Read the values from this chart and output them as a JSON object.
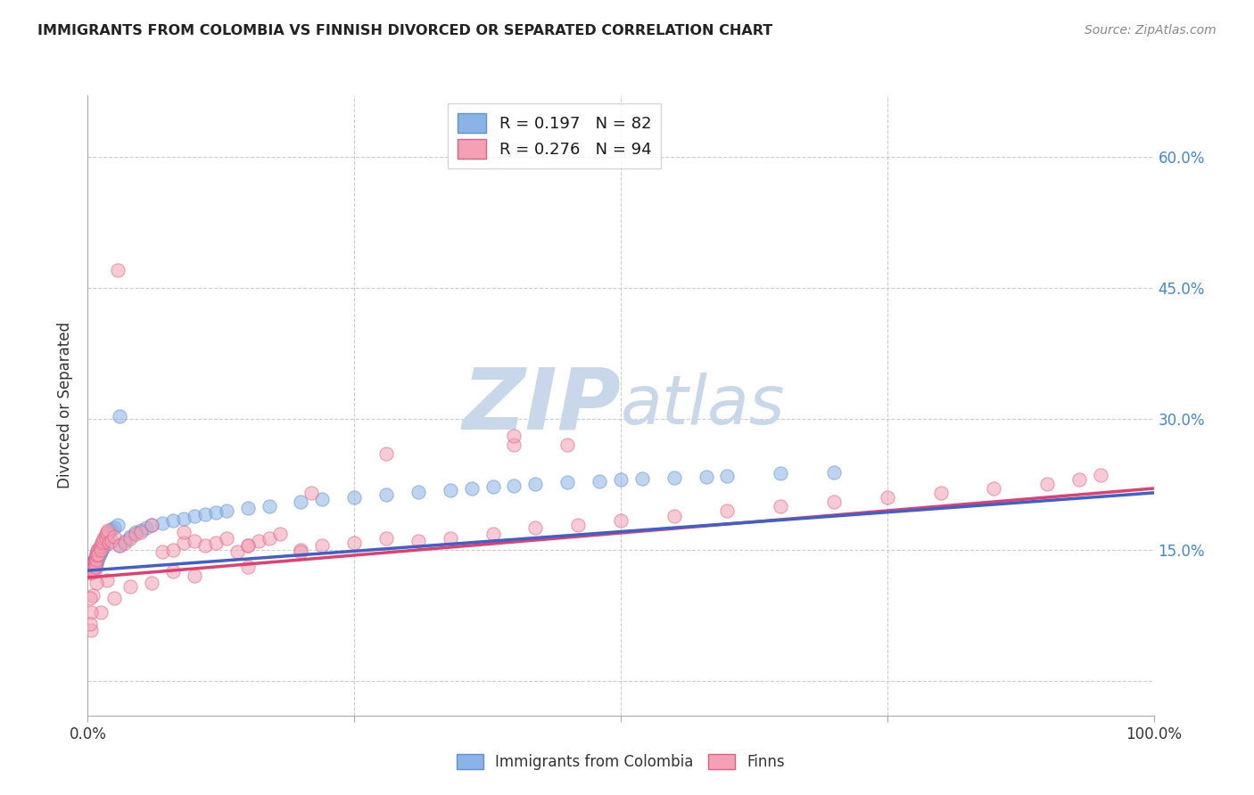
{
  "title": "IMMIGRANTS FROM COLOMBIA VS FINNISH DIVORCED OR SEPARATED CORRELATION CHART",
  "source": "Source: ZipAtlas.com",
  "ylabel": "Divorced or Separated",
  "ytick_positions": [
    0.0,
    0.15,
    0.3,
    0.45,
    0.6
  ],
  "ytick_labels_right": [
    "",
    "15.0%",
    "30.0%",
    "45.0%",
    "60.0%"
  ],
  "xlim": [
    0.0,
    1.0
  ],
  "ylim": [
    -0.04,
    0.67
  ],
  "legend_line1": "R = 0.197   N = 82",
  "legend_line2": "R = 0.276   N = 94",
  "color_blue": "#8ab4e8",
  "color_blue_edge": "#6090d0",
  "color_pink": "#f4a0b5",
  "color_pink_edge": "#e06080",
  "color_blue_line": "#4060c8",
  "color_pink_line": "#e04070",
  "watermark_zip": "ZIP",
  "watermark_atlas": "atlas",
  "watermark_color": "#c8d8ea",
  "grid_color": "#cccccc",
  "bg_color": "#ffffff",
  "right_yaxis_color": "#4488cc",
  "scatter_size": 120,
  "scatter_alpha": 0.55,
  "blue_trend_x0": 0.0,
  "blue_trend_y0": 0.126,
  "blue_trend_x1": 1.0,
  "blue_trend_y1": 0.215,
  "pink_trend_x0": 0.0,
  "pink_trend_y0": 0.118,
  "pink_trend_x1": 1.0,
  "pink_trend_y1": 0.22,
  "blue_x": [
    0.002,
    0.003,
    0.003,
    0.004,
    0.004,
    0.004,
    0.005,
    0.005,
    0.005,
    0.005,
    0.005,
    0.006,
    0.006,
    0.006,
    0.006,
    0.007,
    0.007,
    0.007,
    0.007,
    0.008,
    0.008,
    0.008,
    0.008,
    0.009,
    0.009,
    0.009,
    0.01,
    0.01,
    0.01,
    0.011,
    0.011,
    0.012,
    0.012,
    0.013,
    0.013,
    0.014,
    0.015,
    0.015,
    0.016,
    0.017,
    0.018,
    0.019,
    0.02,
    0.022,
    0.025,
    0.028,
    0.03,
    0.035,
    0.04,
    0.045,
    0.05,
    0.055,
    0.06,
    0.07,
    0.08,
    0.09,
    0.1,
    0.11,
    0.12,
    0.13,
    0.15,
    0.17,
    0.2,
    0.22,
    0.25,
    0.28,
    0.31,
    0.34,
    0.36,
    0.38,
    0.4,
    0.42,
    0.45,
    0.48,
    0.5,
    0.52,
    0.55,
    0.58,
    0.6,
    0.65,
    0.7,
    0.03
  ],
  "blue_y": [
    0.13,
    0.133,
    0.128,
    0.135,
    0.13,
    0.125,
    0.132,
    0.128,
    0.135,
    0.13,
    0.128,
    0.138,
    0.133,
    0.13,
    0.128,
    0.14,
    0.138,
    0.135,
    0.132,
    0.145,
    0.14,
    0.138,
    0.133,
    0.148,
    0.143,
    0.138,
    0.148,
    0.145,
    0.14,
    0.15,
    0.145,
    0.152,
    0.148,
    0.155,
    0.15,
    0.155,
    0.158,
    0.153,
    0.16,
    0.163,
    0.165,
    0.168,
    0.17,
    0.173,
    0.175,
    0.178,
    0.155,
    0.16,
    0.165,
    0.17,
    0.172,
    0.175,
    0.178,
    0.18,
    0.183,
    0.185,
    0.188,
    0.19,
    0.192,
    0.195,
    0.198,
    0.2,
    0.205,
    0.208,
    0.21,
    0.213,
    0.216,
    0.218,
    0.22,
    0.222,
    0.223,
    0.225,
    0.227,
    0.228,
    0.23,
    0.231,
    0.232,
    0.233,
    0.234,
    0.237,
    0.238,
    0.303
  ],
  "pink_x": [
    0.002,
    0.003,
    0.003,
    0.004,
    0.004,
    0.005,
    0.005,
    0.005,
    0.006,
    0.006,
    0.006,
    0.007,
    0.007,
    0.007,
    0.008,
    0.008,
    0.009,
    0.009,
    0.01,
    0.01,
    0.011,
    0.012,
    0.012,
    0.013,
    0.014,
    0.015,
    0.016,
    0.017,
    0.018,
    0.019,
    0.02,
    0.022,
    0.025,
    0.028,
    0.03,
    0.035,
    0.04,
    0.045,
    0.05,
    0.06,
    0.07,
    0.08,
    0.09,
    0.1,
    0.11,
    0.12,
    0.13,
    0.14,
    0.15,
    0.16,
    0.17,
    0.18,
    0.2,
    0.22,
    0.25,
    0.28,
    0.31,
    0.34,
    0.38,
    0.42,
    0.46,
    0.5,
    0.55,
    0.6,
    0.65,
    0.7,
    0.75,
    0.8,
    0.85,
    0.9,
    0.93,
    0.95,
    0.4,
    0.45,
    0.28,
    0.2,
    0.15,
    0.1,
    0.08,
    0.06,
    0.04,
    0.025,
    0.018,
    0.012,
    0.008,
    0.005,
    0.003,
    0.003,
    0.002,
    0.002,
    0.4,
    0.21,
    0.15,
    0.09
  ],
  "pink_y": [
    0.125,
    0.13,
    0.123,
    0.132,
    0.127,
    0.13,
    0.125,
    0.128,
    0.135,
    0.13,
    0.125,
    0.14,
    0.135,
    0.13,
    0.145,
    0.138,
    0.15,
    0.143,
    0.15,
    0.145,
    0.153,
    0.155,
    0.15,
    0.158,
    0.16,
    0.163,
    0.165,
    0.168,
    0.17,
    0.172,
    0.158,
    0.16,
    0.165,
    0.47,
    0.155,
    0.158,
    0.163,
    0.168,
    0.17,
    0.178,
    0.148,
    0.15,
    0.158,
    0.16,
    0.155,
    0.158,
    0.163,
    0.148,
    0.155,
    0.16,
    0.163,
    0.168,
    0.15,
    0.155,
    0.158,
    0.163,
    0.16,
    0.163,
    0.168,
    0.175,
    0.178,
    0.183,
    0.188,
    0.195,
    0.2,
    0.205,
    0.21,
    0.215,
    0.22,
    0.225,
    0.23,
    0.235,
    0.27,
    0.27,
    0.26,
    0.148,
    0.13,
    0.12,
    0.125,
    0.112,
    0.108,
    0.095,
    0.115,
    0.078,
    0.112,
    0.098,
    0.058,
    0.078,
    0.095,
    0.065,
    0.28,
    0.215,
    0.155,
    0.17
  ]
}
